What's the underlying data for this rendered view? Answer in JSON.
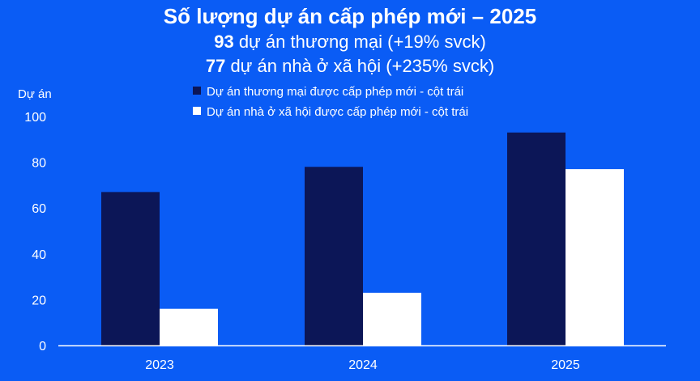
{
  "header": {
    "title": "Số lượng dự án cấp phép mới – 2025",
    "line1_bold": "93",
    "line1_text": " dự án thương mại (+19% svck)",
    "line2_bold": "77",
    "line2_text": " dự án nhà ở xã hội (+235% svck)"
  },
  "colors": {
    "background": "#0a5cf5",
    "series1": "#0c1657",
    "series2": "#ffffff",
    "axis": "#ffffff"
  },
  "chart_data": {
    "type": "bar",
    "categories": [
      "2023",
      "2024",
      "2025"
    ],
    "series": [
      {
        "name": "Dự án thương mại được cấp phép mới - cột trái",
        "values": [
          67,
          78,
          93
        ]
      },
      {
        "name": "Dự án nhà ở xã hội được cấp phép mới - cột trái",
        "values": [
          16,
          23,
          77
        ]
      }
    ],
    "ylabel": "Dự án",
    "ylim": [
      0,
      100
    ],
    "yticks": [
      0,
      20,
      40,
      60,
      80,
      100
    ],
    "grid": false,
    "legend_position": "top"
  }
}
